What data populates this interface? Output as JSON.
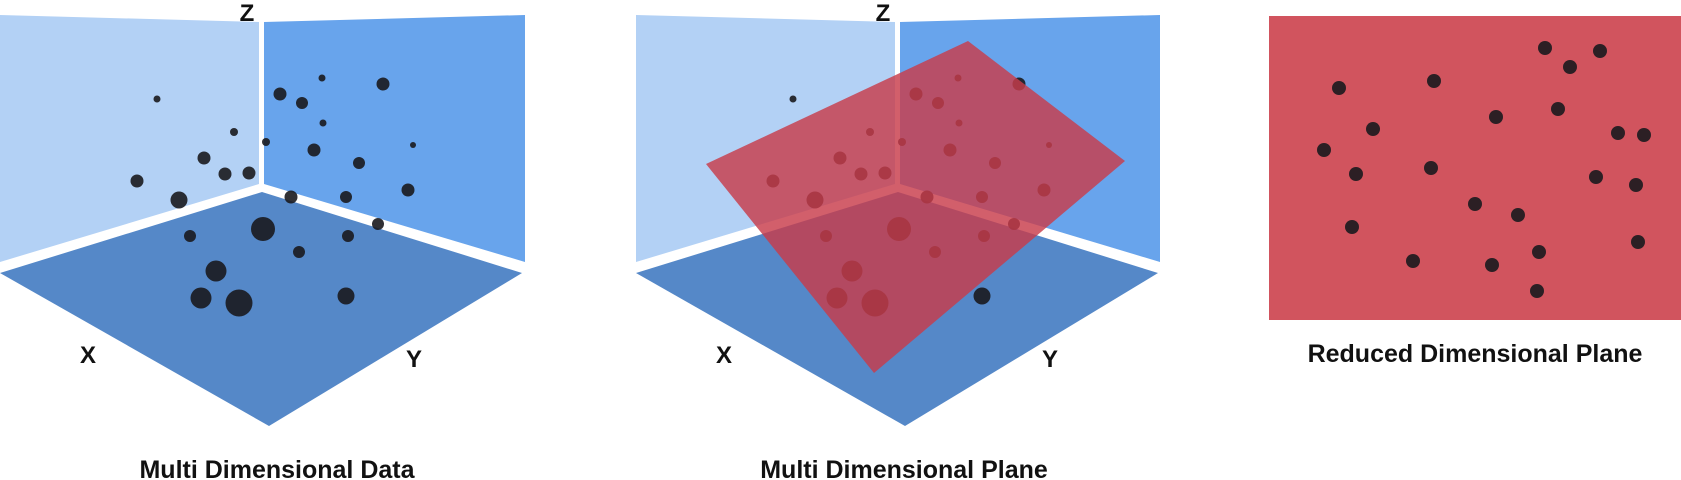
{
  "colors": {
    "wall_left": "#b3d1f5",
    "wall_right": "#68a4ec",
    "floor": "#5588c8",
    "plane": "#c83c4b",
    "plane_flat": "#d1545e",
    "dot": "#1a1a1e",
    "text": "#111111"
  },
  "panels": {
    "first": {
      "axis_x": "X",
      "axis_y": "Y",
      "axis_z": "Z",
      "caption": "Multi Dimensional Data"
    },
    "second": {
      "axis_x": "X",
      "axis_y": "Y",
      "axis_z": "Z",
      "caption": "Multi Dimensional Plane"
    },
    "third": {
      "caption": "Reduced Dimensional Plane"
    }
  }
}
